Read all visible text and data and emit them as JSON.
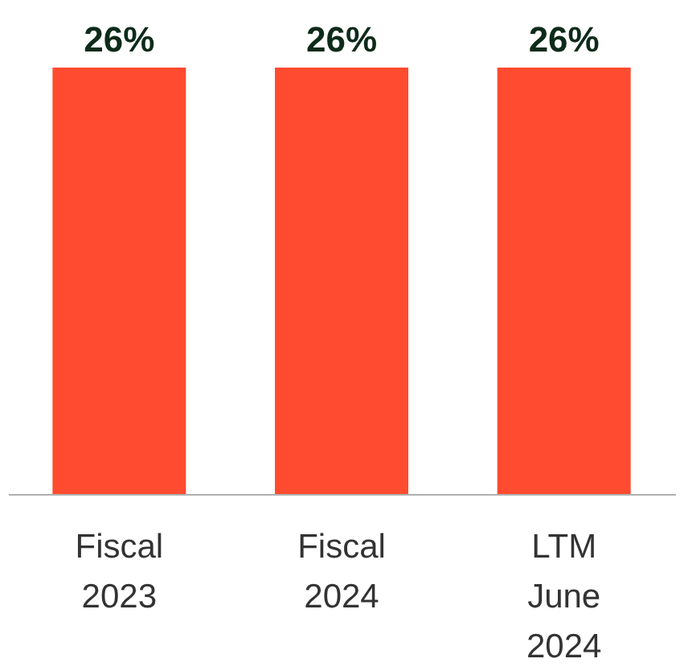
{
  "chart_data": {
    "type": "bar",
    "categories": [
      "Fiscal 2023",
      "Fiscal 2024",
      "LTM June 2024"
    ],
    "values": [
      26,
      26,
      26
    ],
    "color": "#ff4b2f",
    "value_labels": [
      "26%",
      "26%",
      "26%"
    ]
  }
}
